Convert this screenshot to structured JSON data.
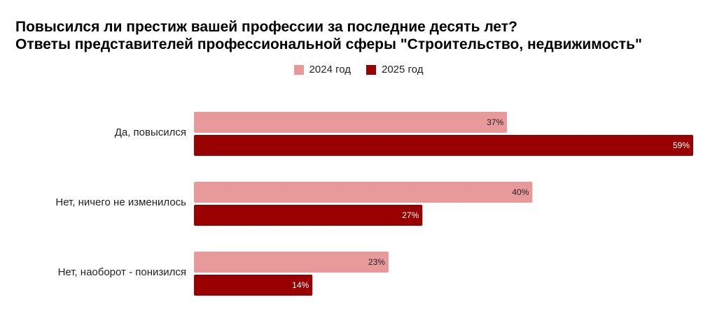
{
  "chart_data": {
    "type": "bar",
    "orientation": "horizontal",
    "title": "Повысился ли престиж вашей профессии за последние десять лет?",
    "subtitle": "Ответы представителей профессиональной сферы \"Строительство, недвижимость\"",
    "categories": [
      "Да, повысился",
      "Нет, ничего не изменилось",
      "Нет, наоборот - понизился"
    ],
    "series": [
      {
        "name": "2024 год",
        "color": "#E89A9A",
        "label_color": "#222222",
        "values": [
          37,
          40,
          23
        ],
        "labels": [
          "37%",
          "40%",
          "23%"
        ]
      },
      {
        "name": "2025 год",
        "color": "#990000",
        "label_color": "#ffffff",
        "values": [
          59,
          27,
          14
        ],
        "labels": [
          "59%",
          "27%",
          "14%"
        ]
      }
    ],
    "xlim": [
      0,
      59
    ],
    "grid": false,
    "legend_position": "top-center"
  }
}
